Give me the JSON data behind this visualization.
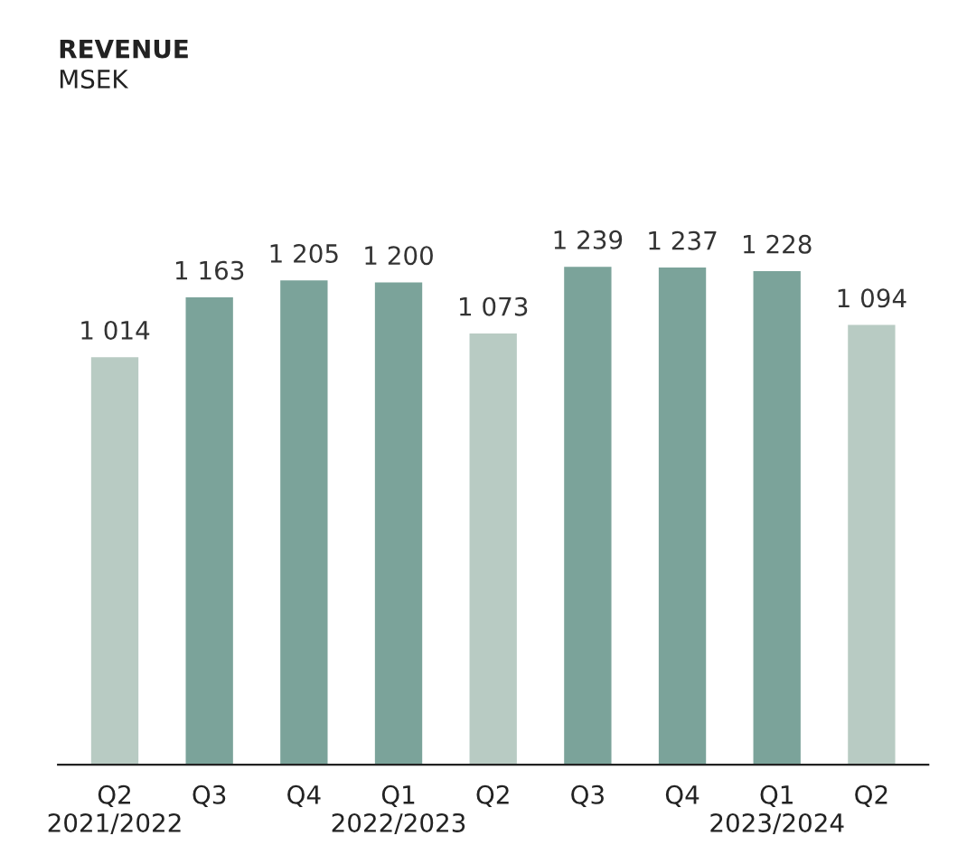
{
  "chart_data": {
    "type": "bar",
    "title": "REVENUE",
    "subtitle": "MSEK",
    "categories": [
      "Q2\n2021/2022",
      "Q3",
      "Q4",
      "Q1\n2022/2023",
      "Q2",
      "Q3",
      "Q4",
      "Q1\n2023/2024",
      "Q2"
    ],
    "values": [
      1014,
      1163,
      1205,
      1200,
      1073,
      1239,
      1237,
      1228,
      1094
    ],
    "value_labels": [
      "1 014",
      "1 163",
      "1 205",
      "1 200",
      "1 073",
      "1 239",
      "1 237",
      "1 228",
      "1 094"
    ],
    "colors": [
      "#b8cbc3",
      "#7ba39a",
      "#7ba39a",
      "#7ba39a",
      "#b8cbc3",
      "#7ba39a",
      "#7ba39a",
      "#7ba39a",
      "#b8cbc3"
    ],
    "grid": false,
    "legend": false
  }
}
